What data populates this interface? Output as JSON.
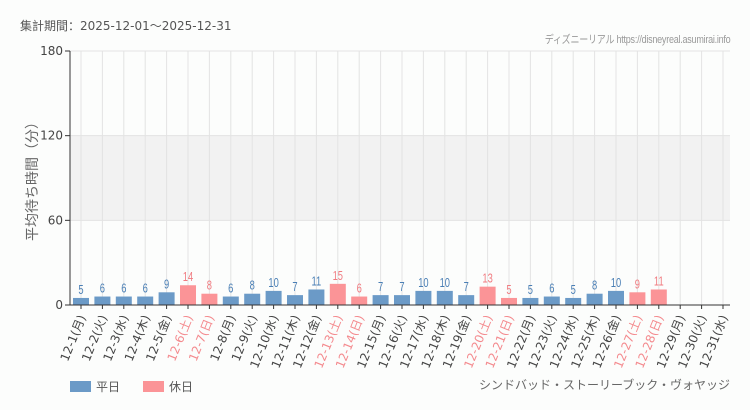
{
  "header": {
    "period_label": "集計期間：2025-12-01〜2025-12-31",
    "credit": "ディズニーリアル https://disneyreal.asumirai.info"
  },
  "legend": {
    "items": [
      {
        "label": "平日",
        "color": "#6b9ac7"
      },
      {
        "label": "休日",
        "color": "#fb9497"
      }
    ]
  },
  "attraction_name": "シンドバッド・ストーリーブック・ヴォヤッジ",
  "colors": {
    "weekday": "#6b9ac7",
    "holiday": "#fb9497",
    "weekday_text": "#4a7fb5",
    "holiday_text": "#f07b80",
    "band": "#f2f2f2",
    "grid": "#e3e3e3"
  },
  "chart_data": {
    "type": "bar",
    "title": "集計期間：2025-12-01〜2025-12-31",
    "xlabel": "",
    "ylabel": "平均待ち時間（分）",
    "ylim": [
      0,
      180
    ],
    "yticks": [
      0,
      60,
      120,
      180
    ],
    "grid": true,
    "shaded_band": [
      60,
      120
    ],
    "legend_position": "bottom-left",
    "categories": [
      "12-1(月)",
      "12-2(火)",
      "12-3(水)",
      "12-4(木)",
      "12-5(金)",
      "12-6(土)",
      "12-7(日)",
      "12-8(月)",
      "12-9(火)",
      "12-10(水)",
      "12-11(木)",
      "12-12(金)",
      "12-13(土)",
      "12-14(日)",
      "12-15(月)",
      "12-16(火)",
      "12-17(水)",
      "12-18(木)",
      "12-19(金)",
      "12-20(土)",
      "12-21(日)",
      "12-22(月)",
      "12-23(火)",
      "12-24(水)",
      "12-25(木)",
      "12-26(金)",
      "12-27(土)",
      "12-28(日)",
      "12-29(月)",
      "12-30(火)",
      "12-31(水)"
    ],
    "values": [
      5,
      6,
      6,
      6,
      9,
      14,
      8,
      6,
      8,
      10,
      7,
      11,
      15,
      6,
      7,
      7,
      10,
      10,
      7,
      13,
      5,
      5,
      6,
      5,
      8,
      10,
      9,
      11,
      null,
      null,
      null
    ],
    "day_type": [
      "平日",
      "平日",
      "平日",
      "平日",
      "平日",
      "休日",
      "休日",
      "平日",
      "平日",
      "平日",
      "平日",
      "平日",
      "休日",
      "休日",
      "平日",
      "平日",
      "平日",
      "平日",
      "平日",
      "休日",
      "休日",
      "平日",
      "平日",
      "平日",
      "平日",
      "平日",
      "休日",
      "休日",
      "平日",
      "平日",
      "平日"
    ],
    "series": [
      {
        "name": "平日",
        "color": "#6b9ac7"
      },
      {
        "name": "休日",
        "color": "#fb9497"
      }
    ]
  }
}
